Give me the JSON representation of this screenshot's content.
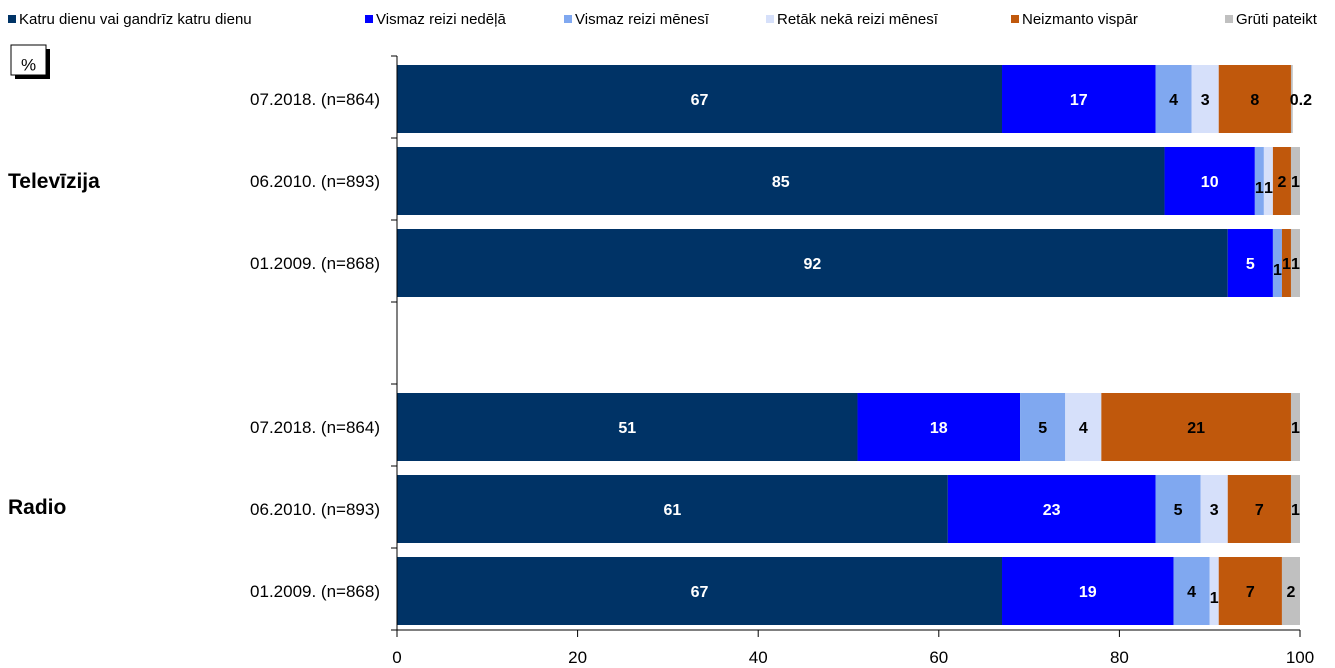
{
  "chart_data": {
    "type": "bar",
    "orientation": "horizontal",
    "stacked": true,
    "unit_label": "%",
    "series": [
      {
        "name": "Katru dienu vai gandrīz katru dienu",
        "color": "#003366"
      },
      {
        "name": "Vismaz reizi nedēļā",
        "color": "#0000ff"
      },
      {
        "name": "Vismaz reizi mēnesī",
        "color": "#80a8f0"
      },
      {
        "name": "Retāk nekā reizi mēnesī",
        "color": "#d6e0fa"
      },
      {
        "name": "Neizmanto vispār",
        "color": "#c0580c"
      },
      {
        "name": "Grūti pateikt",
        "color": "#c0c0c0"
      }
    ],
    "groups": [
      {
        "name": "Televīzija",
        "rows": [
          {
            "label": "07.2018. (n=864)",
            "values": [
              67,
              17,
              4,
              3,
              8,
              0.2
            ],
            "labels": [
              "67",
              "17",
              "4",
              "3",
              "8",
              "0.2"
            ]
          },
          {
            "label": "06.2010. (n=893)",
            "values": [
              85,
              10,
              1,
              1,
              2,
              1
            ],
            "labels": [
              "85",
              "10",
              "1",
              "1",
              "2",
              "1"
            ]
          },
          {
            "label": "01.2009. (n=868)",
            "values": [
              92,
              5,
              1,
              0,
              1,
              1
            ],
            "labels": [
              "92",
              "5",
              "1",
              "",
              "1",
              "1"
            ]
          }
        ]
      },
      {
        "name": "Radio",
        "rows": [
          {
            "label": "07.2018. (n=864)",
            "values": [
              51,
              18,
              5,
              4,
              21,
              1
            ],
            "labels": [
              "51",
              "18",
              "5",
              "4",
              "21",
              "1"
            ]
          },
          {
            "label": "06.2010. (n=893)",
            "values": [
              61,
              23,
              5,
              3,
              7,
              1
            ],
            "labels": [
              "61",
              "23",
              "5",
              "3",
              "7",
              "1"
            ]
          },
          {
            "label": "01.2009. (n=868)",
            "values": [
              67,
              19,
              4,
              1,
              7,
              2
            ],
            "labels": [
              "67",
              "19",
              "4",
              "1",
              "7",
              "2"
            ]
          }
        ]
      }
    ],
    "xlim": [
      0,
      100
    ],
    "xticks": [
      "0",
      "20",
      "40",
      "60",
      "80",
      "100"
    ],
    "grid": false,
    "legend_position": "top"
  }
}
